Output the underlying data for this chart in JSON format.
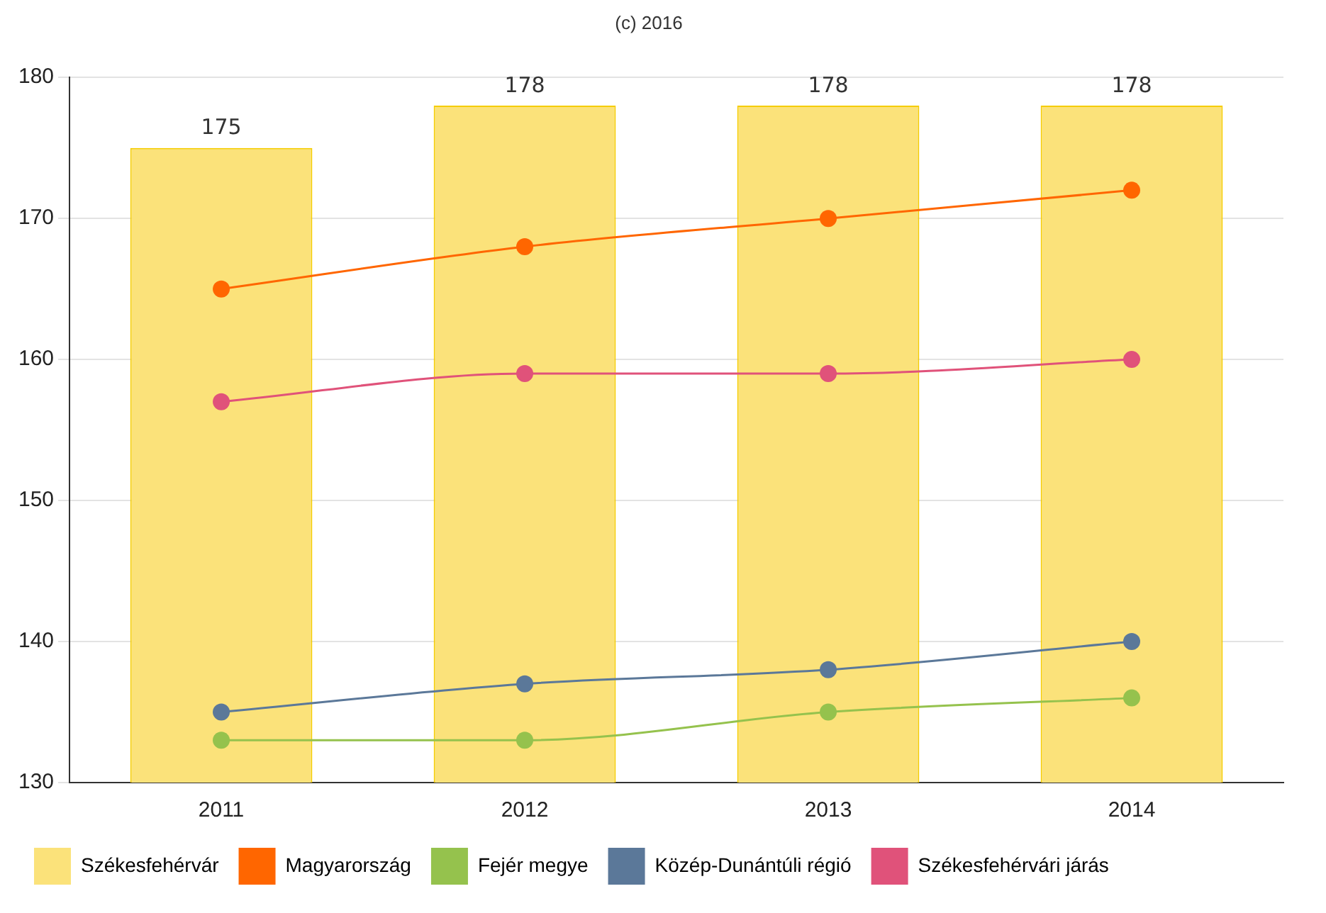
{
  "chart_data": {
    "type": "line",
    "title": "(c) 2016",
    "categories": [
      "2011",
      "2012",
      "2013",
      "2014"
    ],
    "series": [
      {
        "name": "Székesfehérvár",
        "type": "bar",
        "color": "#fbe27a",
        "values": [
          175,
          178,
          178,
          178
        ],
        "value_labels": [
          "175",
          "178",
          "178",
          "178"
        ]
      },
      {
        "name": "Magyarország",
        "color": "#ff6600",
        "values": [
          165,
          168,
          170,
          172
        ]
      },
      {
        "name": "Fejér megye",
        "color": "#95c24d",
        "values": [
          133,
          133,
          135,
          136
        ]
      },
      {
        "name": "Közép-Dunántúli régió",
        "color": "#5b7899",
        "values": [
          135,
          137,
          138,
          140
        ]
      },
      {
        "name": "Székesfehérvári járás",
        "color": "#e0527a",
        "values": [
          157,
          159,
          159,
          160
        ]
      }
    ],
    "ylim": [
      130,
      180
    ],
    "yticks": [
      130,
      140,
      150,
      160,
      170,
      180
    ],
    "grid": "y",
    "legend": "bottom",
    "marker": "circle",
    "line_style": "solid"
  }
}
